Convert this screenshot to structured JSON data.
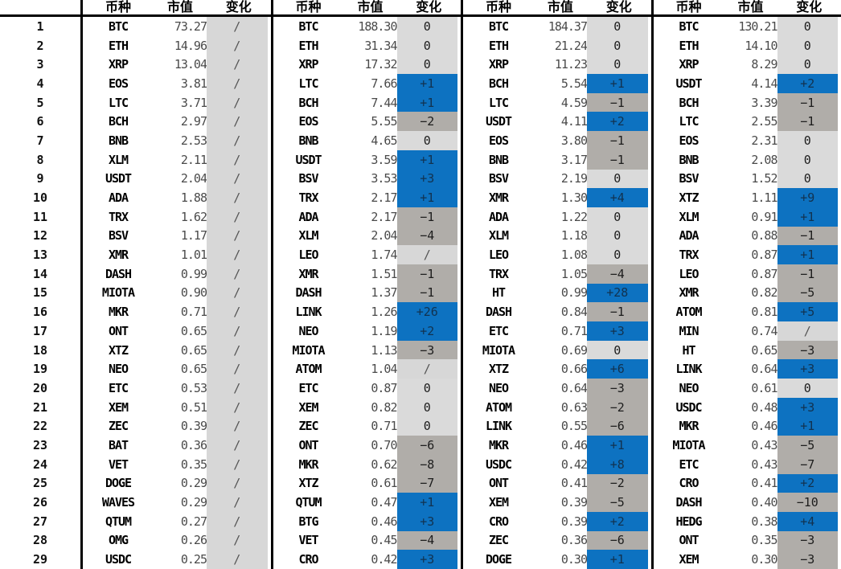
{
  "table": {
    "column_headers": {
      "coin": "币种",
      "cap": "市值",
      "change": "变化"
    },
    "change_colors": {
      "positive": "#0d72c1",
      "negative": "#b0ada9",
      "zero": "#dadada",
      "none": "#d7d7d7"
    },
    "ranks": [
      "1",
      "2",
      "3",
      "4",
      "5",
      "6",
      "7",
      "8",
      "9",
      "10",
      "11",
      "12",
      "13",
      "14",
      "15",
      "16",
      "17",
      "18",
      "19",
      "20",
      "21",
      "22",
      "23",
      "24",
      "25",
      "26",
      "27",
      "28",
      "29"
    ],
    "groups": [
      {
        "rows": [
          {
            "coin": "BTC",
            "cap": "73.27",
            "change": "/"
          },
          {
            "coin": "ETH",
            "cap": "14.96",
            "change": "/"
          },
          {
            "coin": "XRP",
            "cap": "13.04",
            "change": "/"
          },
          {
            "coin": "EOS",
            "cap": "3.81",
            "change": "/"
          },
          {
            "coin": "LTC",
            "cap": "3.71",
            "change": "/"
          },
          {
            "coin": "BCH",
            "cap": "2.97",
            "change": "/"
          },
          {
            "coin": "BNB",
            "cap": "2.53",
            "change": "/"
          },
          {
            "coin": "XLM",
            "cap": "2.11",
            "change": "/"
          },
          {
            "coin": "USDT",
            "cap": "2.04",
            "change": "/"
          },
          {
            "coin": "ADA",
            "cap": "1.88",
            "change": "/"
          },
          {
            "coin": "TRX",
            "cap": "1.62",
            "change": "/"
          },
          {
            "coin": "BSV",
            "cap": "1.17",
            "change": "/"
          },
          {
            "coin": "XMR",
            "cap": "1.01",
            "change": "/"
          },
          {
            "coin": "DASH",
            "cap": "0.99",
            "change": "/"
          },
          {
            "coin": "MIOTA",
            "cap": "0.90",
            "change": "/"
          },
          {
            "coin": "MKR",
            "cap": "0.71",
            "change": "/"
          },
          {
            "coin": "ONT",
            "cap": "0.65",
            "change": "/"
          },
          {
            "coin": "XTZ",
            "cap": "0.65",
            "change": "/"
          },
          {
            "coin": "NEO",
            "cap": "0.65",
            "change": "/"
          },
          {
            "coin": "ETC",
            "cap": "0.53",
            "change": "/"
          },
          {
            "coin": "XEM",
            "cap": "0.51",
            "change": "/"
          },
          {
            "coin": "ZEC",
            "cap": "0.39",
            "change": "/"
          },
          {
            "coin": "BAT",
            "cap": "0.36",
            "change": "/"
          },
          {
            "coin": "VET",
            "cap": "0.35",
            "change": "/"
          },
          {
            "coin": "DOGE",
            "cap": "0.29",
            "change": "/"
          },
          {
            "coin": "WAVES",
            "cap": "0.29",
            "change": "/"
          },
          {
            "coin": "QTUM",
            "cap": "0.27",
            "change": "/"
          },
          {
            "coin": "OMG",
            "cap": "0.26",
            "change": "/"
          },
          {
            "coin": "USDC",
            "cap": "0.25",
            "change": "/"
          }
        ]
      },
      {
        "rows": [
          {
            "coin": "BTC",
            "cap": "188.30",
            "change": "0"
          },
          {
            "coin": "ETH",
            "cap": "31.34",
            "change": "0"
          },
          {
            "coin": "XRP",
            "cap": "17.32",
            "change": "0"
          },
          {
            "coin": "LTC",
            "cap": "7.66",
            "change": "+1"
          },
          {
            "coin": "BCH",
            "cap": "7.44",
            "change": "+1"
          },
          {
            "coin": "EOS",
            "cap": "5.55",
            "change": "−2"
          },
          {
            "coin": "BNB",
            "cap": "4.65",
            "change": "0"
          },
          {
            "coin": "USDT",
            "cap": "3.59",
            "change": "+1"
          },
          {
            "coin": "BSV",
            "cap": "3.53",
            "change": "+3"
          },
          {
            "coin": "TRX",
            "cap": "2.17",
            "change": "+1"
          },
          {
            "coin": "ADA",
            "cap": "2.17",
            "change": "−1"
          },
          {
            "coin": "XLM",
            "cap": "2.04",
            "change": "−4"
          },
          {
            "coin": "LEO",
            "cap": "1.74",
            "change": "/"
          },
          {
            "coin": "XMR",
            "cap": "1.51",
            "change": "−1"
          },
          {
            "coin": "DASH",
            "cap": "1.37",
            "change": "−1"
          },
          {
            "coin": "LINK",
            "cap": "1.26",
            "change": "+26"
          },
          {
            "coin": "NEO",
            "cap": "1.19",
            "change": "+2"
          },
          {
            "coin": "MIOTA",
            "cap": "1.13",
            "change": "−3"
          },
          {
            "coin": "ATOM",
            "cap": "1.04",
            "change": "/"
          },
          {
            "coin": "ETC",
            "cap": "0.87",
            "change": "0"
          },
          {
            "coin": "XEM",
            "cap": "0.82",
            "change": "0"
          },
          {
            "coin": "ZEC",
            "cap": "0.71",
            "change": "0"
          },
          {
            "coin": "ONT",
            "cap": "0.70",
            "change": "−6"
          },
          {
            "coin": "MKR",
            "cap": "0.62",
            "change": "−8"
          },
          {
            "coin": "XTZ",
            "cap": "0.61",
            "change": "−7"
          },
          {
            "coin": "QTUM",
            "cap": "0.47",
            "change": "+1"
          },
          {
            "coin": "BTG",
            "cap": "0.46",
            "change": "+3"
          },
          {
            "coin": "VET",
            "cap": "0.45",
            "change": "−4"
          },
          {
            "coin": "CRO",
            "cap": "0.42",
            "change": "+3"
          }
        ]
      },
      {
        "rows": [
          {
            "coin": "BTC",
            "cap": "184.37",
            "change": "0"
          },
          {
            "coin": "ETH",
            "cap": "21.24",
            "change": "0"
          },
          {
            "coin": "XRP",
            "cap": "11.23",
            "change": "0"
          },
          {
            "coin": "BCH",
            "cap": "5.54",
            "change": "+1"
          },
          {
            "coin": "LTC",
            "cap": "4.59",
            "change": "−1"
          },
          {
            "coin": "USDT",
            "cap": "4.11",
            "change": "+2"
          },
          {
            "coin": "EOS",
            "cap": "3.80",
            "change": "−1"
          },
          {
            "coin": "BNB",
            "cap": "3.17",
            "change": "−1"
          },
          {
            "coin": "BSV",
            "cap": "2.19",
            "change": "0"
          },
          {
            "coin": "XMR",
            "cap": "1.30",
            "change": "+4"
          },
          {
            "coin": "ADA",
            "cap": "1.22",
            "change": "0"
          },
          {
            "coin": "XLM",
            "cap": "1.18",
            "change": "0"
          },
          {
            "coin": "LEO",
            "cap": "1.08",
            "change": "0"
          },
          {
            "coin": "TRX",
            "cap": "1.05",
            "change": "−4"
          },
          {
            "coin": "HT",
            "cap": "0.99",
            "change": "+28"
          },
          {
            "coin": "DASH",
            "cap": "0.84",
            "change": "−1"
          },
          {
            "coin": "ETC",
            "cap": "0.71",
            "change": "+3"
          },
          {
            "coin": "MIOTA",
            "cap": "0.69",
            "change": "0"
          },
          {
            "coin": "XTZ",
            "cap": "0.66",
            "change": "+6"
          },
          {
            "coin": "NEO",
            "cap": "0.64",
            "change": "−3"
          },
          {
            "coin": "ATOM",
            "cap": "0.63",
            "change": "−2"
          },
          {
            "coin": "LINK",
            "cap": "0.55",
            "change": "−6"
          },
          {
            "coin": "MKR",
            "cap": "0.46",
            "change": "+1"
          },
          {
            "coin": "USDC",
            "cap": "0.42",
            "change": "+8"
          },
          {
            "coin": "ONT",
            "cap": "0.41",
            "change": "−2"
          },
          {
            "coin": "XEM",
            "cap": "0.39",
            "change": "−5"
          },
          {
            "coin": "CRO",
            "cap": "0.39",
            "change": "+2"
          },
          {
            "coin": "ZEC",
            "cap": "0.36",
            "change": "−6"
          },
          {
            "coin": "DOGE",
            "cap": "0.30",
            "change": "+1"
          }
        ]
      },
      {
        "rows": [
          {
            "coin": "BTC",
            "cap": "130.21",
            "change": "0"
          },
          {
            "coin": "ETH",
            "cap": "14.10",
            "change": "0"
          },
          {
            "coin": "XRP",
            "cap": "8.29",
            "change": "0"
          },
          {
            "coin": "USDT",
            "cap": "4.14",
            "change": "+2"
          },
          {
            "coin": "BCH",
            "cap": "3.39",
            "change": "−1"
          },
          {
            "coin": "LTC",
            "cap": "2.55",
            "change": "−1"
          },
          {
            "coin": "EOS",
            "cap": "2.31",
            "change": "0"
          },
          {
            "coin": "BNB",
            "cap": "2.08",
            "change": "0"
          },
          {
            "coin": "BSV",
            "cap": "1.52",
            "change": "0"
          },
          {
            "coin": "XTZ",
            "cap": "1.11",
            "change": "+9"
          },
          {
            "coin": "XLM",
            "cap": "0.91",
            "change": "+1"
          },
          {
            "coin": "ADA",
            "cap": "0.88",
            "change": "−1"
          },
          {
            "coin": "TRX",
            "cap": "0.87",
            "change": "+1"
          },
          {
            "coin": "LEO",
            "cap": "0.87",
            "change": "−1"
          },
          {
            "coin": "XMR",
            "cap": "0.82",
            "change": "−5"
          },
          {
            "coin": "ATOM",
            "cap": "0.81",
            "change": "+5"
          },
          {
            "coin": "MIN",
            "cap": "0.74",
            "change": "/"
          },
          {
            "coin": "HT",
            "cap": "0.65",
            "change": "−3"
          },
          {
            "coin": "LINK",
            "cap": "0.64",
            "change": "+3"
          },
          {
            "coin": "NEO",
            "cap": "0.61",
            "change": "0"
          },
          {
            "coin": "USDC",
            "cap": "0.48",
            "change": "+3"
          },
          {
            "coin": "MKR",
            "cap": "0.46",
            "change": "+1"
          },
          {
            "coin": "MIOTA",
            "cap": "0.43",
            "change": "−5"
          },
          {
            "coin": "ETC",
            "cap": "0.43",
            "change": "−7"
          },
          {
            "coin": "CRO",
            "cap": "0.41",
            "change": "+2"
          },
          {
            "coin": "DASH",
            "cap": "0.40",
            "change": "−10"
          },
          {
            "coin": "HEDG",
            "cap": "0.38",
            "change": "+4"
          },
          {
            "coin": "ONT",
            "cap": "0.35",
            "change": "−3"
          },
          {
            "coin": "XEM",
            "cap": "0.30",
            "change": "−3"
          }
        ]
      }
    ]
  }
}
